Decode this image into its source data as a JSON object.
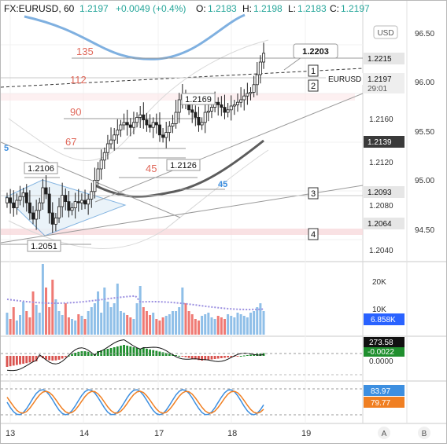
{
  "header": {
    "symbol": "FX:EURUSD, 60",
    "last": "1.2197",
    "change": "+0.0049 (+0.4%)",
    "o_label": "O:",
    "o_value": "1.2183",
    "h_label": "H:",
    "h_value": "1.2198",
    "l_label": "L:",
    "l_value": "1.2183",
    "c_label": "C:",
    "c_value": "1.2197"
  },
  "colors": {
    "up": "#26a69a",
    "up_candle": "#1e1e1e",
    "down_volume": "#ef7a74",
    "up_volume": "#8fbfe8",
    "macd_up": "#1f8f2e",
    "macd_down": "#d9534f",
    "stoch_k": "#3d8fe0",
    "stoch_d": "#f07f22",
    "fib_text": "#e0685a",
    "blue_curve": "#6fa8dc",
    "ma_gray": "#555555",
    "pink_zone": "#f3c9cc"
  },
  "price_axis": {
    "currency": "USD",
    "left_ticks": [
      "96.50",
      "96.00",
      "95.50",
      "95.00",
      "94.50"
    ],
    "right_ticks": [
      "1.2160",
      "1.2120",
      "1.2080",
      "1.2040"
    ],
    "tags": [
      {
        "label": "1.2215",
        "style": "light"
      },
      {
        "label": "EURUSD",
        "style": "plain"
      },
      {
        "label": "1.2197",
        "style": "light"
      },
      {
        "label": "29:01",
        "style": "light"
      },
      {
        "label": "1.2139",
        "style": "dark"
      },
      {
        "label": "1.2093",
        "style": "light"
      },
      {
        "label": "1.2064",
        "style": "light"
      }
    ]
  },
  "annotations": {
    "callout_high": "1.2203",
    "price_1_2169": "1.2169",
    "price_1_2126": "1.2126",
    "price_1_2106": "1.2106",
    "price_1_2051": "1.2051",
    "fib_135": "135",
    "fib_112": "112",
    "fib_90": "90",
    "fib_67": "67",
    "fib_45a": "45",
    "fib_45b": "45",
    "left_marker": "5",
    "box_1": "1",
    "box_2": "2",
    "box_3": "3",
    "box_4": "4"
  },
  "volume_pane": {
    "ticks": [
      "20K",
      "10K"
    ],
    "last_value": "6.858K"
  },
  "macd_pane": {
    "value_1": "273.58",
    "value_2": "-0.0022",
    "tick": "0.0000"
  },
  "stoch_pane": {
    "k_value": "83.97",
    "d_value": "79.77"
  },
  "time_axis": {
    "labels": [
      "13",
      "14",
      "17",
      "18",
      "19"
    ],
    "auto_button": "A",
    "log_button": "B"
  },
  "chart_data": {
    "type": "candlestick",
    "symbol": "FX:EURUSD",
    "interval": "60",
    "y_range": [
      1.2035,
      1.2225
    ],
    "x_labels": [
      "13",
      "14",
      "17",
      "18",
      "19"
    ],
    "series": [
      {
        "values": [
          1.2082,
          1.2078,
          1.2074,
          1.208,
          1.2083,
          1.2086,
          1.2078,
          1.207,
          1.2065,
          1.2072,
          1.2078,
          1.209,
          1.2085,
          1.207,
          1.2061,
          1.2066,
          1.2075,
          1.2084,
          1.2079,
          1.2072,
          1.2074,
          1.2079,
          1.2078,
          1.208,
          1.2077,
          1.2081,
          1.2087,
          1.2096,
          1.2105,
          1.2112,
          1.2118,
          1.2125,
          1.2128,
          1.2132,
          1.2136,
          1.214,
          1.2142,
          1.214,
          1.2138,
          1.2142,
          1.2146,
          1.2148,
          1.2144,
          1.214,
          1.2138,
          1.2142,
          1.214,
          1.2132,
          1.213,
          1.2134,
          1.2139,
          1.2141,
          1.215,
          1.216,
          1.2164,
          1.2158,
          1.2152,
          1.215,
          1.2146,
          1.214,
          1.2142,
          1.215,
          1.2151,
          1.2154,
          1.2158,
          1.2156,
          1.2154,
          1.215,
          1.2152,
          1.2155,
          1.2156,
          1.2158,
          1.216,
          1.2163,
          1.2165,
          1.2166,
          1.2172,
          1.218,
          1.219,
          1.2197
        ]
      }
    ],
    "key_levels": [
      1.2215,
      1.2203,
      1.2197,
      1.2169,
      1.2139,
      1.2126,
      1.2106,
      1.2093,
      1.2064,
      1.2051
    ],
    "indicators": {
      "volume_last": "6.858K",
      "macd": [
        "273.58",
        "-0.0022"
      ],
      "stochastic": {
        "k": 83.97,
        "d": 79.77
      }
    }
  }
}
